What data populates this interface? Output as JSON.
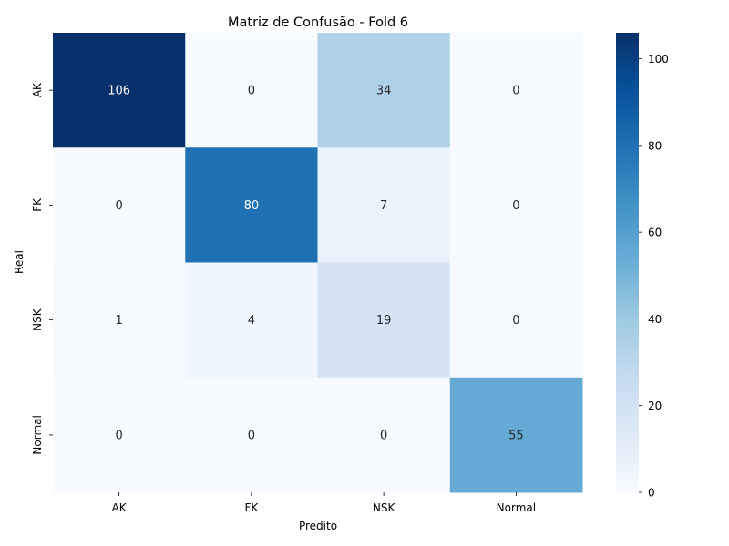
{
  "chart_data": {
    "type": "heatmap",
    "title": "Matriz de Confusão - Fold 6",
    "xlabel": "Predito",
    "ylabel": "Real",
    "x_categories": [
      "AK",
      "FK",
      "NSK",
      "Normal"
    ],
    "y_categories": [
      "AK",
      "FK",
      "NSK",
      "Normal"
    ],
    "values": [
      [
        106,
        0,
        34,
        0
      ],
      [
        0,
        80,
        7,
        0
      ],
      [
        1,
        4,
        19,
        0
      ],
      [
        0,
        0,
        0,
        55
      ]
    ],
    "vmin": 0,
    "vmax": 106,
    "colormap": "Blues",
    "colorbar_ticks": [
      0,
      20,
      40,
      60,
      80,
      100
    ]
  }
}
